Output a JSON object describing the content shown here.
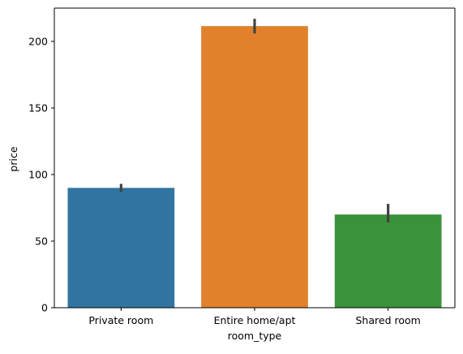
{
  "chart_data": {
    "type": "bar",
    "title": "",
    "xlabel": "room_type",
    "ylabel": "price",
    "categories": [
      "Private room",
      "Entire home/apt",
      "Shared room"
    ],
    "values": [
      90,
      211.5,
      70
    ],
    "error_bars": [
      {
        "low": 87,
        "high": 93
      },
      {
        "low": 206,
        "high": 217
      },
      {
        "low": 64,
        "high": 78
      }
    ],
    "colors": [
      "#3274a1",
      "#e1812c",
      "#3a923a"
    ],
    "errorbar_color": "#424242",
    "ylim": [
      0,
      225
    ],
    "yticks": [
      0,
      50,
      100,
      150,
      200
    ],
    "grid": false,
    "legend": "none"
  }
}
